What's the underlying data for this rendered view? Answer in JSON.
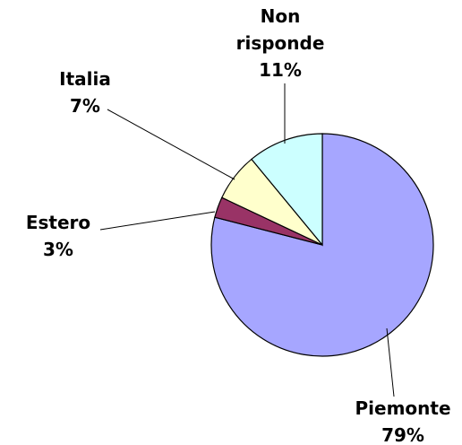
{
  "chart_data": {
    "type": "pie",
    "categories": [
      "Piemonte",
      "Estero",
      "Italia",
      "Non risponde"
    ],
    "values": [
      79,
      3,
      7,
      11
    ],
    "value_labels": [
      "79%",
      "3%",
      "7%",
      "11%"
    ],
    "colors": [
      "#a6a6ff",
      "#993366",
      "#ffffcc",
      "#ccffff"
    ]
  }
}
